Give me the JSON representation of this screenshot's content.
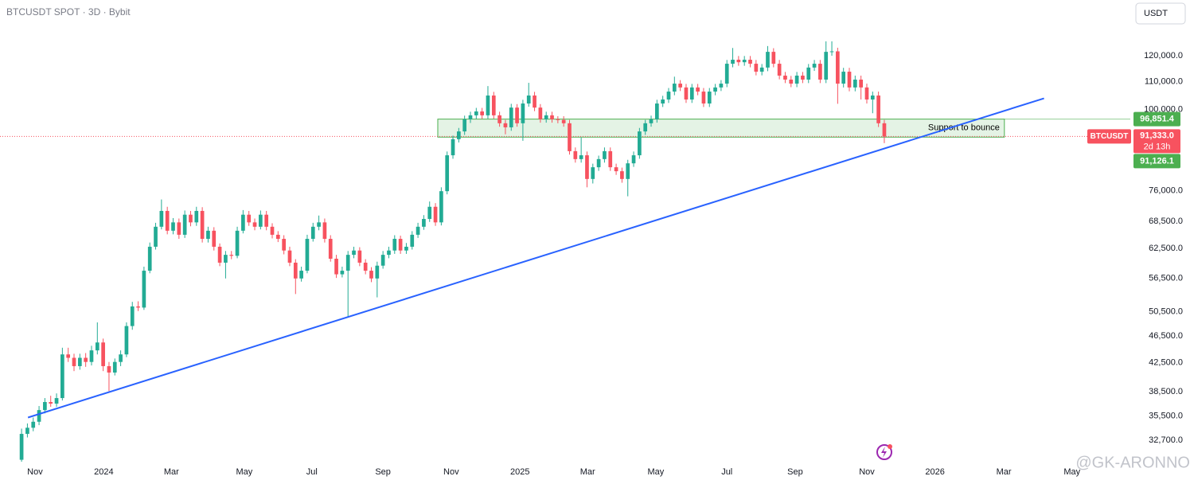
{
  "chart_data": {
    "type": "candlestick",
    "title": "BTCUSDT SPOT · 3D · Bybit",
    "currency": "USDT",
    "watermark": "@GK-ARONNO",
    "up_color": "#22ab94",
    "down_color": "#f7525f",
    "log_scale": true,
    "grid": false,
    "ylim": [
      30400,
      144900
    ],
    "xlim": [
      -3.7,
      190.2
    ],
    "yticks": [
      {
        "value": 120000,
        "label": "120,000.0"
      },
      {
        "value": 110000,
        "label": "110,000.0"
      },
      {
        "value": 100000,
        "label": "100,000.0"
      },
      {
        "value": 76000,
        "label": "76,000.0"
      },
      {
        "value": 68500,
        "label": "68,500.0"
      },
      {
        "value": 62500,
        "label": "62,500.0"
      },
      {
        "value": 56500,
        "label": "56,500.0"
      },
      {
        "value": 50500,
        "label": "50,500.0"
      },
      {
        "value": 46500,
        "label": "46,500.0"
      },
      {
        "value": 42500,
        "label": "42,500.0"
      },
      {
        "value": 38500,
        "label": "38,500.0"
      },
      {
        "value": 35500,
        "label": "35,500.0"
      },
      {
        "value": 32700,
        "label": "32,700.0"
      }
    ],
    "xticks": [
      {
        "value": 2.3,
        "label": "Nov"
      },
      {
        "value": 14.1,
        "label": "2024"
      },
      {
        "value": 25.7,
        "label": "Mar"
      },
      {
        "value": 38.2,
        "label": "May"
      },
      {
        "value": 49.8,
        "label": "Jul"
      },
      {
        "value": 62.0,
        "label": "Sep"
      },
      {
        "value": 73.7,
        "label": "Nov"
      },
      {
        "value": 85.5,
        "label": "2025"
      },
      {
        "value": 97.1,
        "label": "Mar"
      },
      {
        "value": 108.8,
        "label": "May"
      },
      {
        "value": 121.0,
        "label": "Jul"
      },
      {
        "value": 132.7,
        "label": "Sep"
      },
      {
        "value": 145.0,
        "label": "Nov"
      },
      {
        "value": 156.7,
        "label": "2026"
      },
      {
        "value": 168.5,
        "label": "Mar"
      },
      {
        "value": 180.2,
        "label": "May"
      }
    ],
    "ohlc": [
      [
        30600,
        34000,
        30400,
        33400
      ],
      [
        33400,
        34600,
        33000,
        34100
      ],
      [
        34100,
        35300,
        33700,
        34800
      ],
      [
        34800,
        36700,
        34400,
        36200
      ],
      [
        36200,
        37700,
        35800,
        37200
      ],
      [
        37200,
        38000,
        36600,
        37000
      ],
      [
        37000,
        38300,
        36600,
        37700
      ],
      [
        37700,
        44700,
        37400,
        43700
      ],
      [
        43700,
        44700,
        42600,
        43200
      ],
      [
        43200,
        43800,
        41300,
        42000
      ],
      [
        42000,
        43800,
        41500,
        43200
      ],
      [
        43200,
        43900,
        41900,
        42600
      ],
      [
        42600,
        45000,
        42100,
        44300
      ],
      [
        44300,
        48700,
        43700,
        45500
      ],
      [
        45500,
        46100,
        41300,
        42000
      ],
      [
        42000,
        42600,
        38600,
        41100
      ],
      [
        41100,
        43100,
        40700,
        42600
      ],
      [
        42600,
        44300,
        42000,
        43700
      ],
      [
        43700,
        48700,
        43300,
        48100
      ],
      [
        48100,
        52200,
        47500,
        51400
      ],
      [
        51400,
        52300,
        50600,
        51200
      ],
      [
        51200,
        58800,
        50800,
        58000
      ],
      [
        58000,
        63800,
        57500,
        62900
      ],
      [
        62900,
        68200,
        62300,
        67300
      ],
      [
        67300,
        73800,
        66700,
        71000
      ],
      [
        71000,
        72000,
        65600,
        66400
      ],
      [
        66400,
        69300,
        65600,
        68300
      ],
      [
        68300,
        69200,
        64600,
        65500
      ],
      [
        65500,
        71100,
        64800,
        70100
      ],
      [
        70100,
        71000,
        67400,
        68300
      ],
      [
        68300,
        72000,
        67500,
        71000
      ],
      [
        71000,
        71900,
        63800,
        64600
      ],
      [
        64600,
        67300,
        63800,
        66400
      ],
      [
        66400,
        67200,
        62100,
        62900
      ],
      [
        62900,
        63600,
        58900,
        59600
      ],
      [
        59600,
        62000,
        56500,
        61200
      ],
      [
        61200,
        62000,
        60300,
        61000
      ],
      [
        61000,
        67300,
        60500,
        66400
      ],
      [
        66400,
        71200,
        65800,
        70100
      ],
      [
        70100,
        71000,
        67500,
        68300
      ],
      [
        68300,
        69200,
        66500,
        67300
      ],
      [
        67300,
        71100,
        66700,
        70100
      ],
      [
        70100,
        71000,
        66500,
        67300
      ],
      [
        67300,
        68100,
        64700,
        65500
      ],
      [
        65500,
        66300,
        63900,
        64600
      ],
      [
        64600,
        65400,
        61300,
        62100
      ],
      [
        62100,
        62900,
        58900,
        59600
      ],
      [
        59600,
        60300,
        53600,
        56500
      ],
      [
        56500,
        58800,
        55900,
        58000
      ],
      [
        58000,
        65500,
        57500,
        64600
      ],
      [
        64600,
        68200,
        64000,
        67300
      ],
      [
        67300,
        69900,
        66500,
        68300
      ],
      [
        68300,
        69200,
        63800,
        64600
      ],
      [
        64600,
        65400,
        59800,
        60400
      ],
      [
        60400,
        61200,
        56600,
        57300
      ],
      [
        57300,
        58800,
        56700,
        58000
      ],
      [
        58000,
        62000,
        49600,
        61200
      ],
      [
        61200,
        62900,
        60500,
        62100
      ],
      [
        62100,
        62800,
        58900,
        59600
      ],
      [
        59600,
        60300,
        57300,
        58000
      ],
      [
        58000,
        58700,
        55800,
        56500
      ],
      [
        56500,
        59800,
        53000,
        59000
      ],
      [
        59000,
        62000,
        58400,
        61200
      ],
      [
        61200,
        62900,
        60500,
        62100
      ],
      [
        62100,
        65400,
        61400,
        64600
      ],
      [
        64600,
        65300,
        61400,
        62100
      ],
      [
        62100,
        63700,
        61400,
        62900
      ],
      [
        62900,
        66300,
        62300,
        65500
      ],
      [
        65500,
        68200,
        64800,
        67300
      ],
      [
        67300,
        70000,
        66600,
        69100
      ],
      [
        69100,
        73300,
        68400,
        72000
      ],
      [
        72000,
        72900,
        67500,
        68300
      ],
      [
        68300,
        76900,
        67600,
        75900
      ],
      [
        75900,
        86800,
        75100,
        85700
      ],
      [
        85700,
        91600,
        84700,
        90500
      ],
      [
        90500,
        94000,
        89500,
        92900
      ],
      [
        92900,
        98000,
        91800,
        96800
      ],
      [
        96800,
        99300,
        95600,
        98100
      ],
      [
        98100,
        100600,
        96900,
        99400
      ],
      [
        99400,
        100600,
        96900,
        98100
      ],
      [
        98100,
        108300,
        97000,
        104900
      ],
      [
        104900,
        106200,
        97000,
        98100
      ],
      [
        98100,
        99300,
        94400,
        95500
      ],
      [
        95500,
        96600,
        92000,
        94200
      ],
      [
        94200,
        102000,
        93100,
        100700
      ],
      [
        100700,
        101900,
        94400,
        95500
      ],
      [
        95500,
        103400,
        90000,
        102100
      ],
      [
        102100,
        109500,
        101000,
        104900
      ],
      [
        104900,
        106200,
        99500,
        100700
      ],
      [
        100700,
        101900,
        95700,
        96800
      ],
      [
        96800,
        99300,
        95700,
        98100
      ],
      [
        98100,
        99300,
        95700,
        96800
      ],
      [
        96800,
        97800,
        95500,
        96600
      ],
      [
        96600,
        97800,
        94400,
        95500
      ],
      [
        95500,
        96600,
        85900,
        86900
      ],
      [
        86900,
        88000,
        83600,
        84600
      ],
      [
        84600,
        91000,
        83600,
        85700
      ],
      [
        85700,
        86800,
        76900,
        79100
      ],
      [
        79100,
        83300,
        77900,
        82300
      ],
      [
        82300,
        85600,
        81300,
        84600
      ],
      [
        84600,
        88000,
        83600,
        86900
      ],
      [
        86900,
        88000,
        81300,
        82300
      ],
      [
        82300,
        83300,
        80200,
        81200
      ],
      [
        81200,
        82200,
        78100,
        79100
      ],
      [
        79100,
        84400,
        74600,
        83400
      ],
      [
        83400,
        86800,
        82400,
        85700
      ],
      [
        85700,
        94000,
        84700,
        92900
      ],
      [
        92900,
        96600,
        91800,
        95500
      ],
      [
        95500,
        98000,
        94400,
        96800
      ],
      [
        96800,
        103400,
        95700,
        102100
      ],
      [
        102100,
        104800,
        100900,
        103500
      ],
      [
        103500,
        107600,
        102300,
        106300
      ],
      [
        106300,
        111800,
        105000,
        109200
      ],
      [
        109200,
        110500,
        106500,
        107800
      ],
      [
        107800,
        109100,
        102300,
        103500
      ],
      [
        103500,
        109100,
        102300,
        107800
      ],
      [
        107800,
        109100,
        105000,
        106300
      ],
      [
        106300,
        107600,
        100900,
        102100
      ],
      [
        102100,
        107600,
        100900,
        106300
      ],
      [
        106300,
        109100,
        105000,
        107800
      ],
      [
        107800,
        110500,
        106500,
        109200
      ],
      [
        109200,
        118300,
        107900,
        116800
      ],
      [
        116800,
        123200,
        115400,
        118400
      ],
      [
        118400,
        119900,
        116000,
        117400
      ],
      [
        117400,
        119900,
        116000,
        118400
      ],
      [
        118400,
        119900,
        115400,
        116800
      ],
      [
        116800,
        118300,
        112300,
        113700
      ],
      [
        113700,
        116700,
        112300,
        115300
      ],
      [
        115300,
        124000,
        113900,
        121600
      ],
      [
        121600,
        123100,
        115400,
        116800
      ],
      [
        116800,
        118300,
        110800,
        112200
      ],
      [
        112200,
        113600,
        109400,
        110700
      ],
      [
        110700,
        112100,
        107900,
        109200
      ],
      [
        109200,
        113600,
        107900,
        112200
      ],
      [
        112200,
        113600,
        109400,
        110700
      ],
      [
        110700,
        116700,
        109400,
        115300
      ],
      [
        115300,
        118300,
        114000,
        116800
      ],
      [
        116800,
        118300,
        109400,
        110700
      ],
      [
        110700,
        126000,
        109400,
        121600
      ],
      [
        121600,
        126000,
        120000,
        121800
      ],
      [
        121800,
        123300,
        102000,
        109200
      ],
      [
        109200,
        115200,
        107800,
        113700
      ],
      [
        113700,
        115200,
        106400,
        107800
      ],
      [
        107800,
        112200,
        106400,
        110700
      ],
      [
        110700,
        112200,
        103500,
        107800
      ],
      [
        107800,
        109200,
        102100,
        103500
      ],
      [
        103500,
        106300,
        98800,
        104900
      ],
      [
        104900,
        106300,
        94300,
        95500
      ],
      [
        95500,
        96600,
        89300,
        91333
      ]
    ],
    "trendline": {
      "x": [
        1.1,
        175.4
      ],
      "y": [
        35300,
        103900
      ],
      "color": "#2962ff"
    },
    "zone": {
      "label": "Support to bounce",
      "x": [
        71.4,
        168.6
      ],
      "top": {
        "value": 96851.4,
        "label": "96,851.4"
      },
      "bottom": {
        "value": 91126.1,
        "label": "91,126.1"
      },
      "color": "#4caf50"
    },
    "price_line": {
      "symbol": "BTCUSDT",
      "value": 91333.0,
      "label": "91,333.0",
      "countdown": "2d 13h",
      "color": "#f7525f"
    }
  }
}
